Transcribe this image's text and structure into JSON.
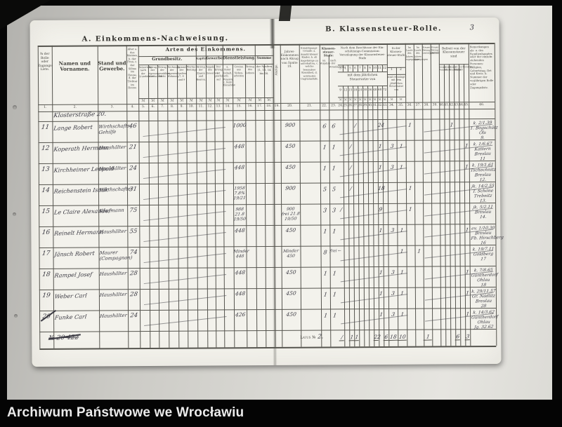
{
  "photo": {
    "caption": "Archiwum Państwowe we Wrocławiu",
    "page_number": "3"
  },
  "titles": {
    "a": "A. Einkommens-Nachweisung.",
    "a_group": "Arten des Einkommens.",
    "b": "B. Klassensteuer-Rolle."
  },
  "colors": {
    "paper": "#f3f2ec",
    "backdrop": "#d2d1cc",
    "ink": "#3e3d38",
    "pencil": "#3a3942",
    "frame": "#060606"
  },
  "header": {
    "c1": "№ der Rolle oder Zugangs-Liste.",
    "c2": "Namen und Vornamen.",
    "c3": "Stand und Gewerbe.",
    "c4": "Alter a. des Mannes, b. der Frau, c. der Söhne im Hause, d. der Töchter im Hause.",
    "grundbesitz": "Grundbesitz.",
    "grundbesitz_sub": [
      "Reinertrag nach der Grundsteuer",
      "Ertrag der eigenen Wirthschaft",
      "Betrag der gezahlten Pacht",
      "Rechnung der eigenen Wohnung",
      "Summe der Spalten 7, 8 und 9",
      "Werths-Beiträge"
    ],
    "kapital": "Kapital.",
    "kapital_sub": "Betrag der Zinsen und Renten.",
    "gewerbe": "Gewerbe.",
    "gewerbe_sub": [
      "Angabe des Gewerbes",
      "Der Ertrag ist geschätzt auf"
    ],
    "dienst": "Dienstleistung.",
    "dienst_sub": [
      "a. fester Gehalt, b. Pension, c. feste Einnahme",
      "Gewinn aus Neben-arbeiten",
      "Betrag des Lohnes"
    ],
    "summe": "Summe",
    "summe_sub": "der Spalten 11, 13, 14 bis 16.",
    "c19": "Abzüge.",
    "c20": "Jahres-Einkommen nach Abzug von Spalte 19.",
    "c21": "Ermäßigungs-Gründe: a. Anzahl kleiner Kinder, b. ob Angehörige zu unterhalten, c. welche besondere Krankheit, d. welcherlei Unglücksfälle.",
    "stufe": "Klassen-steuer-Stufe:",
    "stufe_sub": [
      "im Vorjahre",
      "nach der Veranlagung"
    ],
    "beschluss": "Nach dem Beschlusse der Ein-schätzungs-Commission: Veranlagung der Klassensteuer-Stufe",
    "beschluss_nums": [
      "3",
      "4",
      "5",
      "6",
      "7",
      "8",
      "9",
      "10",
      "11",
      "12"
    ],
    "beschluss_mid": "mit dem jährlichen Steuersatze von",
    "beschluss_rates": [
      "9",
      "12",
      "15",
      "18",
      "24",
      "30",
      "36",
      "48",
      "60",
      "72"
    ],
    "in_stufe": "In der Klassen-steuer-Stufe",
    "in_stufe_nums": [
      "1",
      "2"
    ],
    "in_stufe_sub": "sind veranlagt mit dem jährlichen Steuersatze von",
    "mid_cols": [
      "Im Laufe des Jahres zugegangen",
      "Im Laufe des Jahres abgegangen",
      "Steuer-Betrag vierteljährlich",
      "Steuer-Betrag jährlich"
    ],
    "befreit": "Befreit von der Klassensteuer sind",
    "befreit_sub": [
      "wegen Armuth",
      "wegen Alters",
      "wegen Krankheit",
      "als Militair",
      "nach § 5",
      "sonstige"
    ],
    "c46": "Bemerkungen als: a. des Familienhauptes oder der einzeln-stehenden Personen: Religion, Geburtstag, Ort und Kreis. b. Nummer der vorjährigen Rolle oder Zugangsliste.",
    "mark_symbol": "ℳ",
    "col_numbers_left": [
      "1.",
      "2.",
      "3.",
      "4.",
      "5.",
      "6.",
      "7.",
      "8.",
      "9.",
      "10.",
      "11.",
      "12.",
      "13.",
      "14.",
      "15.",
      "16.",
      "17.",
      "18."
    ],
    "col_numbers_right": [
      "19.",
      "20.",
      "21.",
      "22.",
      "23.",
      "24.",
      "25.",
      "26.",
      "27.",
      "28.",
      "29.",
      "30.",
      "31.",
      "32.",
      "33.",
      "34.",
      "35.",
      "36.",
      "37.",
      "38.",
      "39.",
      "40.",
      "41.",
      "42.",
      "43.",
      "44.",
      "45.",
      "46."
    ]
  },
  "entries": {
    "street_header": "Klosterstraße 20.",
    "rows": [
      {
        "no": "11",
        "name": "Lange Robert",
        "stand": [
          "Wirthschafts-",
          "Gehilfe"
        ],
        "alter": "46",
        "einkommen": [
          "1000"
        ],
        "abzug": [
          "900"
        ],
        "stufe_vor": "6",
        "stufe_nach": "6",
        "marks": [
          [
            27,
            "/"
          ],
          [
            32,
            "24"
          ],
          [
            36,
            "1"
          ],
          [
            42,
            "1"
          ]
        ],
        "remark": [
          "k. 2/1.39",
          "1. Bogschütz",
          "Öls",
          "9."
        ]
      },
      {
        "no": "12",
        "name": "Koperath Hermann",
        "stand": [
          "Haushälter"
        ],
        "alter": "21",
        "einkommen": [
          "448"
        ],
        "abzug": [
          "450"
        ],
        "stufe_vor": "1",
        "stufe_nach": "1",
        "marks": [
          [
            26,
            "/"
          ],
          [
            32,
            "1"
          ],
          [
            34,
            "3"
          ],
          [
            35,
            "1"
          ],
          [
            45,
            "1"
          ]
        ],
        "remark": [
          "k. 1/6.67",
          "Kattern",
          "Breslau",
          "11"
        ]
      },
      {
        "no": "13",
        "name": "Kirchheimer Leopold",
        "stand": [
          "Haushälter"
        ],
        "alter": "24",
        "einkommen": [
          "448"
        ],
        "abzug": [
          "450"
        ],
        "stufe_vor": "1",
        "stufe_nach": "1",
        "marks": [
          [
            26,
            "/"
          ],
          [
            32,
            "1"
          ],
          [
            34,
            "3"
          ],
          [
            35,
            "1"
          ],
          [
            45,
            "1"
          ]
        ],
        "remark": [
          "k. 19/1.61",
          "Tschechnitz",
          "Breslau",
          "12."
        ]
      },
      {
        "no": "14",
        "name": "Reichenstein Isaak",
        "stand": [
          "Wirthschafter"
        ],
        "alter": "31",
        "einkommen": [
          "1958",
          "7.8%",
          "19/21"
        ],
        "abzug": [
          "900"
        ],
        "stufe_vor": "5",
        "stufe_nach": "5",
        "marks": [
          [
            26,
            "/"
          ],
          [
            32,
            "18"
          ],
          [
            36,
            "1"
          ]
        ],
        "remark": [
          "jk. 14/2.55",
          "T. Schöne",
          "Trebnitz",
          "13."
        ]
      },
      {
        "no": "15",
        "name": "Le Claire Alexander",
        "stand": [
          "Kaufmann"
        ],
        "alter": "75",
        "einkommen": [
          "988",
          "21.8",
          "19/50"
        ],
        "abzug": [
          "900",
          "frei 21.8",
          "19/50"
        ],
        "stufe_vor": "3",
        "stufe_nach": "3",
        "marks": [
          [
            24,
            "/"
          ],
          [
            32,
            "9"
          ],
          [
            36,
            "1"
          ]
        ],
        "remark": [
          "jk. 5/2.11",
          "Breslau",
          "14."
        ]
      },
      {
        "no": "16",
        "name": "Reinelt Hermann",
        "stand": [
          "Haushälter"
        ],
        "alter": "55",
        "einkommen": [
          "448"
        ],
        "abzug": [
          "450"
        ],
        "stufe_vor": "1",
        "stufe_nach": "1",
        "marks": [
          [
            32,
            "1"
          ],
          [
            34,
            "3"
          ],
          [
            35,
            "1"
          ],
          [
            45,
            "1"
          ]
        ],
        "remark": [
          "ev. 1/10.30",
          "Breslau",
          "Fb. Hirschberg",
          "16"
        ]
      },
      {
        "no": "17",
        "name": "Jänsch Robert",
        "stand": [
          "Maurer",
          "(Compagnon)"
        ],
        "alter": "74",
        "einkommen": [
          "Minder",
          "448"
        ],
        "abzug": [
          "Minder",
          "450"
        ],
        "stufe_vor": "8",
        "stufe_nach": "frei ←",
        "marks": [
          [
            35,
            "1"
          ],
          [
            37,
            "1"
          ]
        ],
        "remark": [
          "k. 19/7.11",
          "Goldberg",
          "17"
        ]
      },
      {
        "no": "18",
        "name": "Rampel Josef",
        "stand": [
          "Haushälter"
        ],
        "alter": "28",
        "einkommen": [
          "448"
        ],
        "abzug": [
          "450"
        ],
        "stufe_vor": "1",
        "stufe_nach": "1",
        "marks": [
          [
            32,
            "1"
          ],
          [
            34,
            "3"
          ],
          [
            35,
            "1"
          ],
          [
            45,
            "1"
          ]
        ],
        "remark": [
          "k. 7/8.65",
          "Güntherdorf",
          "Ohlau",
          "18"
        ]
      },
      {
        "no": "19",
        "name": "Weber Carl",
        "stand": [
          "Haushälter"
        ],
        "alter": "28",
        "einkommen": [
          "448"
        ],
        "abzug": [
          "450"
        ],
        "stufe_vor": "1",
        "stufe_nach": "1",
        "marks": [
          [
            32,
            "1"
          ],
          [
            34,
            "3"
          ],
          [
            35,
            "1"
          ],
          [
            45,
            "1"
          ]
        ],
        "remark": [
          "k. 29/11.57",
          "Gr. Nädlitz",
          "Breslau",
          "28"
        ]
      },
      {
        "no": "20",
        "name": "Funke Carl",
        "stand": [
          "Haushälter"
        ],
        "alter": "24",
        "einkommen": [
          "426"
        ],
        "abzug": [
          "450"
        ],
        "stufe_vor": "1",
        "stufe_nach": "1",
        "marks": [
          [
            32,
            "1"
          ],
          [
            34,
            "3"
          ],
          [
            35,
            "1"
          ],
          [
            45,
            "1"
          ]
        ],
        "remark": [
          "k. 14/3.62",
          "Güntherdorf",
          "Ohlau",
          "Jg. 32.62"
        ]
      }
    ],
    "crossed_note": "№ 20 422",
    "latus": {
      "label": "Latus №",
      "value": "2.",
      "marks": [
        [
          24,
          "/"
        ],
        [
          26,
          "1"
        ],
        [
          27,
          "1"
        ],
        [
          31,
          "22"
        ],
        [
          33,
          "6"
        ],
        [
          34,
          "18"
        ],
        [
          35,
          "10"
        ],
        [
          38,
          "1"
        ],
        [
          43,
          "6"
        ],
        [
          45,
          "3"
        ]
      ]
    }
  }
}
